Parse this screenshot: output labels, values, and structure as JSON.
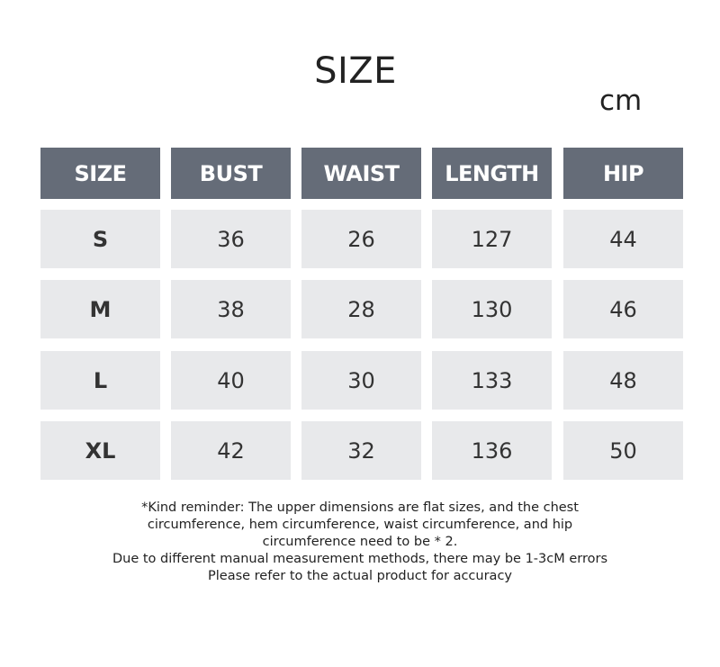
{
  "title": "SIZE",
  "unit": "cm",
  "colors": {
    "header_bg": "#656c78",
    "cell_bg": "#e8e9eb",
    "header_text": "#ffffff"
  },
  "table": {
    "headers": [
      "SIZE",
      "BUST",
      "WAIST",
      "LENGTH",
      "HIP"
    ],
    "rows": [
      [
        "S",
        "36",
        "26",
        "127",
        "44"
      ],
      [
        "M",
        "38",
        "28",
        "130",
        "46"
      ],
      [
        "L",
        "40",
        "30",
        "133",
        "48"
      ],
      [
        "XL",
        "42",
        "32",
        "136",
        "50"
      ]
    ]
  },
  "notes": [
    "*Kind reminder: The upper dimensions are flat sizes, and the chest",
    "circumference, hem circumference, waist circumference, and hip",
    "circumference need to be * 2.",
    "Due to different manual measurement methods, there may be 1-3cM errors",
    "Please refer to the actual product for accuracy"
  ]
}
